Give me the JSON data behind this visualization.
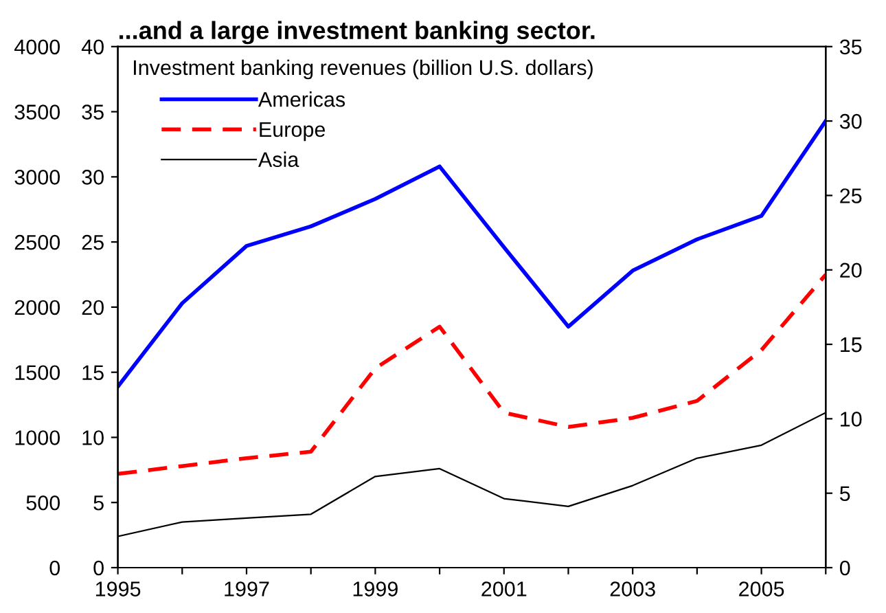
{
  "chart_data": {
    "type": "line",
    "title": "...and a large investment banking sector.",
    "subtitle": "Investment banking revenues (billion U.S. dollars)",
    "x": [
      1995,
      1996,
      1997,
      1998,
      1999,
      2000,
      2001,
      2002,
      2003,
      2004,
      2005,
      2006
    ],
    "series": [
      {
        "name": "Americas",
        "color": "#0000ff",
        "line_style": "solid",
        "values": [
          13.9,
          20.3,
          24.7,
          26.2,
          28.3,
          30.8,
          24.6,
          18.5,
          22.8,
          25.2,
          27.0,
          34.3
        ]
      },
      {
        "name": "Europe",
        "color": "#ff0000",
        "line_style": "dashed",
        "values": [
          7.2,
          7.8,
          8.4,
          8.9,
          15.3,
          18.5,
          11.9,
          10.8,
          11.5,
          12.8,
          16.7,
          22.5
        ]
      },
      {
        "name": "Asia",
        "color": "#000000",
        "line_style": "solid",
        "values": [
          2.4,
          3.5,
          3.8,
          4.1,
          7.0,
          7.6,
          5.3,
          4.7,
          6.3,
          8.4,
          9.4,
          11.9
        ]
      }
    ],
    "xlim": [
      1995,
      2006
    ],
    "xticks": [
      1995,
      {
        "value": 1996,
        "label": null
      },
      1997,
      {
        "value": 1998,
        "label": null
      },
      1999,
      {
        "value": 2000,
        "label": null
      },
      2001,
      {
        "value": 2002,
        "label": null
      },
      2003,
      {
        "value": 2004,
        "label": null
      },
      2005,
      {
        "value": 2006,
        "label": null
      }
    ],
    "ylim": [
      0,
      40
    ],
    "yticks": [
      0,
      5,
      10,
      15,
      20,
      25,
      30,
      35,
      40
    ],
    "y2lim": [
      0,
      35
    ],
    "y2ticks": [
      0,
      5,
      10,
      15,
      20,
      25,
      30,
      35
    ],
    "y3lim": [
      0,
      4000
    ],
    "y3ticks": [
      0,
      500,
      1000,
      1500,
      2000,
      2500,
      3000,
      3500,
      4000
    ],
    "legend": "top left",
    "grid": false,
    "marker": "none"
  }
}
